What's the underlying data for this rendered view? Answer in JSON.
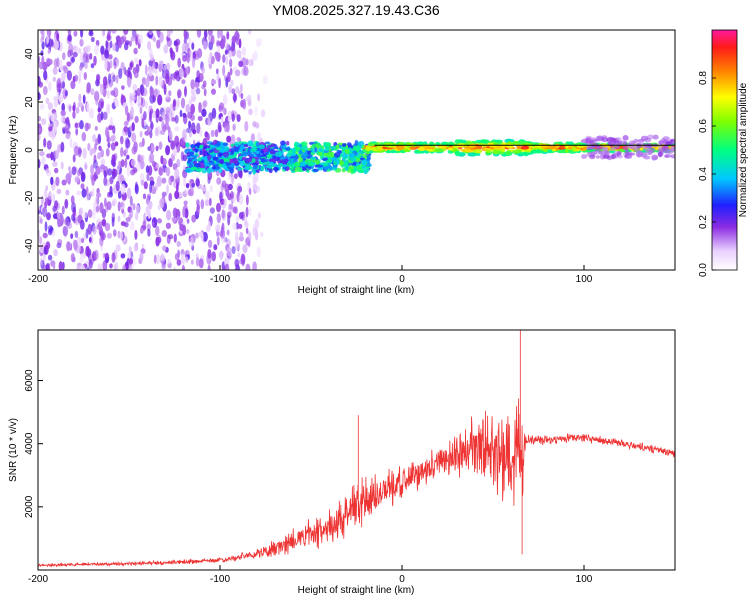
{
  "title": "YM08.2025.327.19.43.C36",
  "chart_data": [
    {
      "type": "heatmap",
      "name": "spectrogram",
      "xlabel": "Height of straight line (km)",
      "ylabel": "Frequency (Hz)",
      "xlim": [
        -200,
        150
      ],
      "ylim": [
        -50,
        50
      ],
      "xticks": [
        -200,
        -100,
        0,
        100
      ],
      "yticks": [
        -40,
        -20,
        0,
        20,
        40
      ],
      "colorbar": {
        "label": "Normalized spectral amplitude",
        "range": [
          0,
          1
        ],
        "ticks": [
          0.0,
          0.2,
          0.4,
          0.6,
          0.8
        ],
        "tick_labels": [
          "0.0",
          "0.2",
          "0.4",
          "0.6",
          "0.8"
        ]
      },
      "description_regions": [
        {
          "x_range": [
            -200,
            -80
          ],
          "freq_range": [
            -50,
            50
          ],
          "amplitude": [
            0.0,
            0.12
          ]
        },
        {
          "x_range": [
            -115,
            -20
          ],
          "freq_range": [
            -10,
            8
          ],
          "amplitude": [
            0.05,
            0.5
          ]
        },
        {
          "x_range": [
            -20,
            150
          ],
          "freq_range": [
            -3,
            6
          ],
          "amplitude": [
            0.5,
            0.95
          ]
        }
      ]
    },
    {
      "type": "line",
      "name": "snr",
      "xlabel": "Height of straight line (km)",
      "ylabel": "SNR (10 * v/v)",
      "xlim": [
        -200,
        150
      ],
      "ylim": [
        0,
        7600
      ],
      "xticks": [
        -200,
        -100,
        0,
        100
      ],
      "yticks": [
        2000,
        4000,
        6000
      ],
      "color": "#ee3333",
      "envelope": [
        {
          "x": -200,
          "y": 150,
          "noise": 80
        },
        {
          "x": -150,
          "y": 200,
          "noise": 100
        },
        {
          "x": -100,
          "y": 300,
          "noise": 150
        },
        {
          "x": -80,
          "y": 500,
          "noise": 250
        },
        {
          "x": -60,
          "y": 900,
          "noise": 700
        },
        {
          "x": -40,
          "y": 1400,
          "noise": 1200
        },
        {
          "x": -20,
          "y": 2200,
          "noise": 1500
        },
        {
          "x": 0,
          "y": 2800,
          "noise": 900
        },
        {
          "x": 20,
          "y": 3400,
          "noise": 900
        },
        {
          "x": 40,
          "y": 3900,
          "noise": 1800
        },
        {
          "x": 60,
          "y": 3600,
          "noise": 2600
        },
        {
          "x": 66,
          "y": 3800,
          "noise": 3200
        },
        {
          "x": 68,
          "y": 4100,
          "noise": 300
        },
        {
          "x": 100,
          "y": 4200,
          "noise": 250
        },
        {
          "x": 130,
          "y": 3900,
          "noise": 250
        },
        {
          "x": 150,
          "y": 3700,
          "noise": 250
        }
      ],
      "spikes": [
        {
          "x": -24,
          "y": 4900
        },
        {
          "x": 65,
          "y": 7600
        },
        {
          "x": 66,
          "y": 500
        }
      ]
    }
  ]
}
